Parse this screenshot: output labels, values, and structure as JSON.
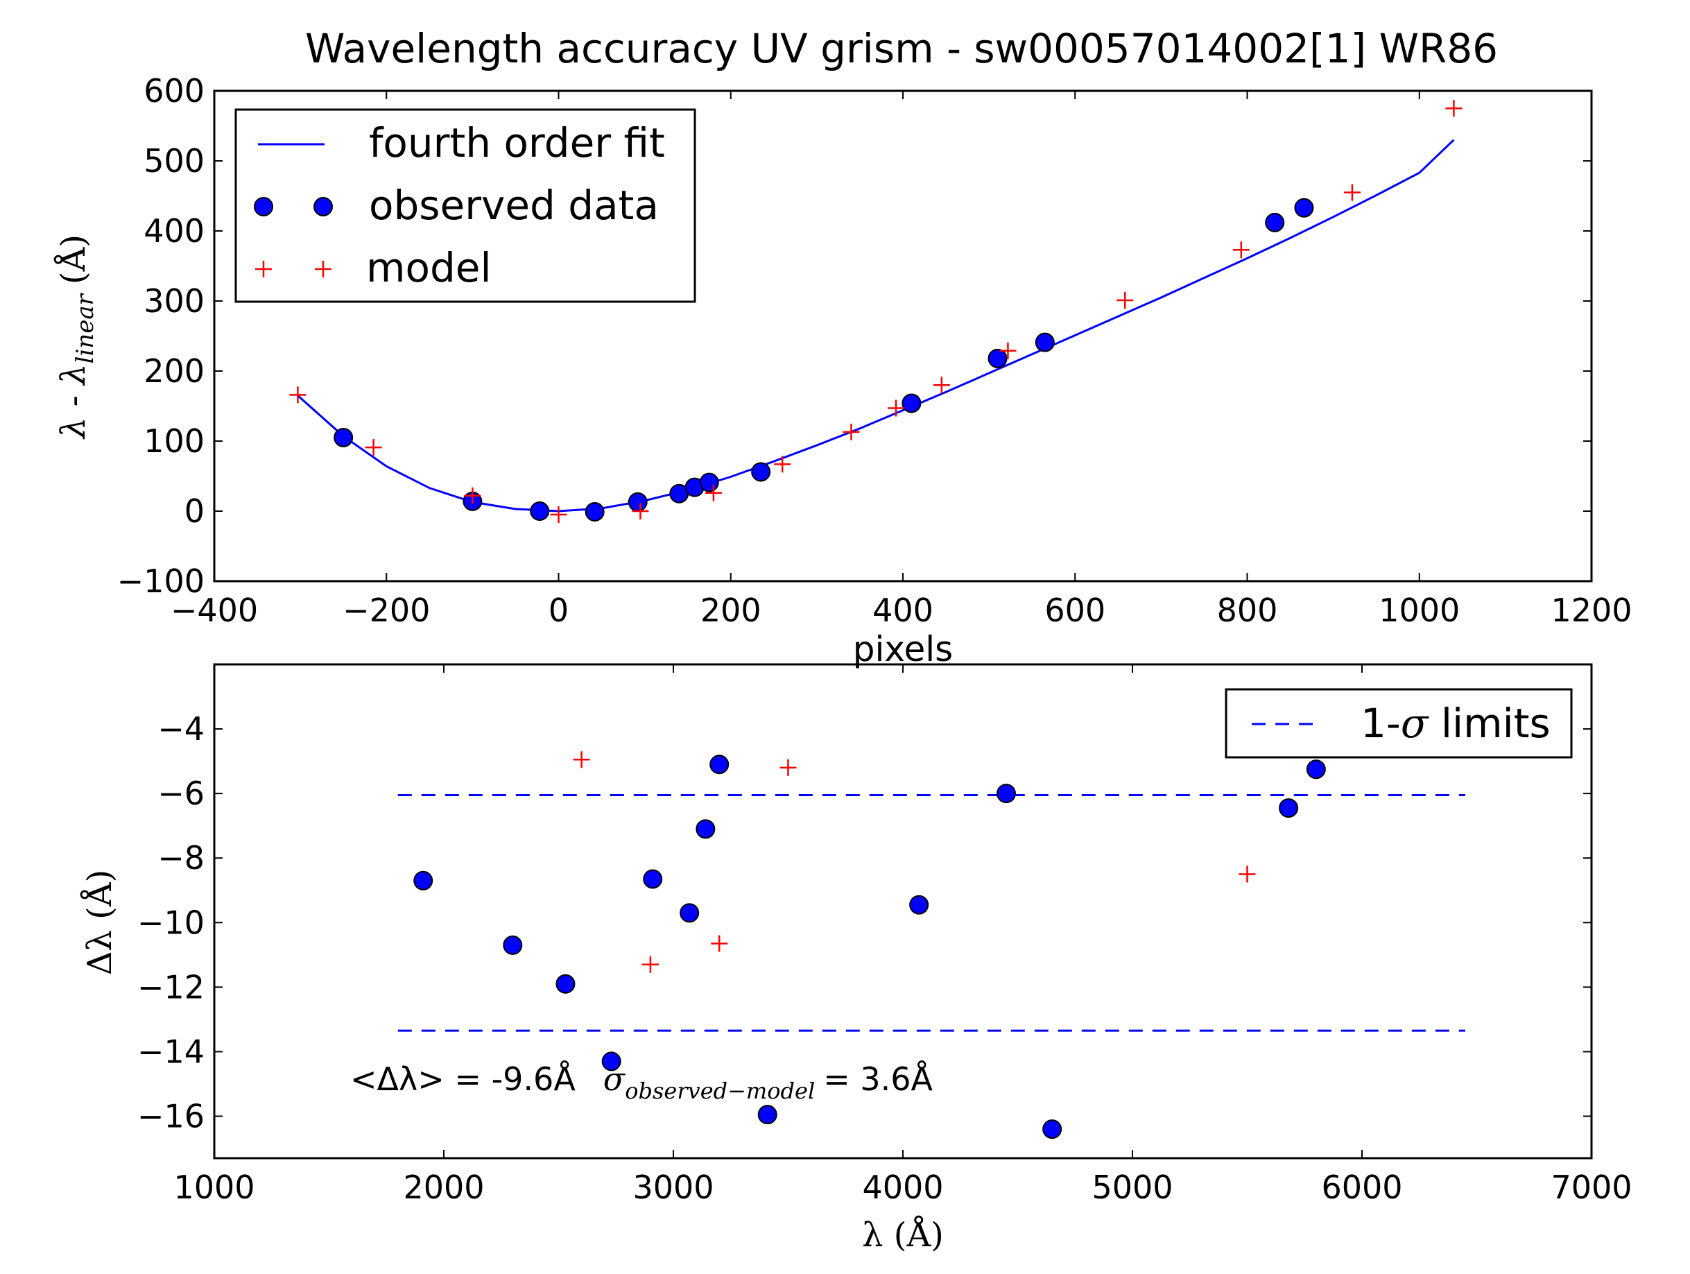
{
  "chart_data": [
    {
      "type": "scatter",
      "title": "Wavelength accuracy UV grism - sw00057014002[1] WR86",
      "xlabel": "pixels",
      "ylabel": "λ - λlinear (Å)",
      "ylabel_main": "λ - λ",
      "ylabel_sub": "linear",
      "ylabel_unit": "(Å)",
      "xlim": [
        -400,
        1200
      ],
      "ylim": [
        -100,
        600
      ],
      "xticks": [
        "−400",
        "−200",
        "0",
        "200",
        "400",
        "600",
        "800",
        "1000",
        "1200"
      ],
      "yticks": [
        "−100",
        "0",
        "100",
        "200",
        "300",
        "400",
        "500",
        "600"
      ],
      "legend_position": "upper-left",
      "series": [
        {
          "name": "fourth order fit",
          "kind": "line",
          "color": "#0000ff",
          "x": [
            -303,
            -250,
            -200,
            -150,
            -100,
            -50,
            0,
            50,
            100,
            150,
            200,
            250,
            300,
            350,
            400,
            450,
            500,
            550,
            600,
            650,
            700,
            750,
            800,
            850,
            900,
            950,
            1000,
            1040
          ],
          "y": [
            165,
            107,
            64,
            33,
            13,
            3,
            0,
            4,
            15,
            30,
            49,
            71,
            94,
            118,
            144,
            170,
            197,
            224,
            251,
            278,
            305,
            333,
            361,
            390,
            420,
            451,
            483,
            530
          ]
        },
        {
          "name": "observed data",
          "kind": "marker-circle",
          "color": "#0000ff",
          "x": [
            -250,
            -100,
            -22,
            42,
            92,
            140,
            158,
            175,
            235,
            410,
            510,
            565,
            832,
            866
          ],
          "y": [
            105,
            14,
            0,
            -1,
            13,
            25,
            34,
            41,
            56,
            154,
            218,
            241,
            412,
            433
          ]
        },
        {
          "name": "model",
          "kind": "marker-plus",
          "color": "#ff0000",
          "x": [
            -303,
            -215,
            -100,
            0,
            95,
            180,
            260,
            340,
            392,
            445,
            522,
            658,
            793,
            922,
            1040
          ],
          "y": [
            166,
            91,
            22,
            -5,
            0,
            26,
            67,
            113,
            147,
            180,
            229,
            301,
            373,
            455,
            575
          ]
        }
      ]
    },
    {
      "type": "scatter",
      "title": "",
      "xlabel": "λ (Å)",
      "ylabel": "Δλ (Å)",
      "xlim": [
        1000,
        7000
      ],
      "ylim": [
        -17.3,
        -2
      ],
      "xticks": [
        "1000",
        "2000",
        "3000",
        "4000",
        "5000",
        "6000",
        "7000"
      ],
      "yticks": [
        "−16",
        "−14",
        "−12",
        "−10",
        "−8",
        "−6",
        "−4"
      ],
      "legend_position": "upper-right",
      "annotation": {
        "mean_label": "<Δλ> = -9.6Å",
        "sigma_symbol": "σ",
        "sigma_sub": "observed−model",
        "sigma_value": "= 3.6Å"
      },
      "series": [
        {
          "name": "1-σ limits",
          "legend_prefix": "1-",
          "legend_sigma": "σ",
          "legend_suffix": " limits",
          "kind": "dashed-lines",
          "color": "#0000ff",
          "x_range": [
            1800,
            6450
          ],
          "levels": [
            -6.05,
            -13.35
          ]
        },
        {
          "kind": "marker-circle",
          "color": "#0000ff",
          "x": [
            1910,
            2300,
            2530,
            2730,
            2910,
            3070,
            3140,
            3200,
            3410,
            4070,
            4450,
            4650,
            5680,
            5800
          ],
          "y": [
            -8.7,
            -10.7,
            -11.9,
            -14.3,
            -8.65,
            -9.7,
            -7.1,
            -5.1,
            -15.95,
            -9.45,
            -6.0,
            -16.4,
            -6.45,
            -5.25
          ]
        },
        {
          "kind": "marker-plus",
          "color": "#ff0000",
          "x": [
            2600,
            2900,
            3200,
            3500,
            5500
          ],
          "y": [
            -4.95,
            -11.3,
            -10.65,
            -5.2,
            -8.5
          ]
        }
      ]
    }
  ]
}
